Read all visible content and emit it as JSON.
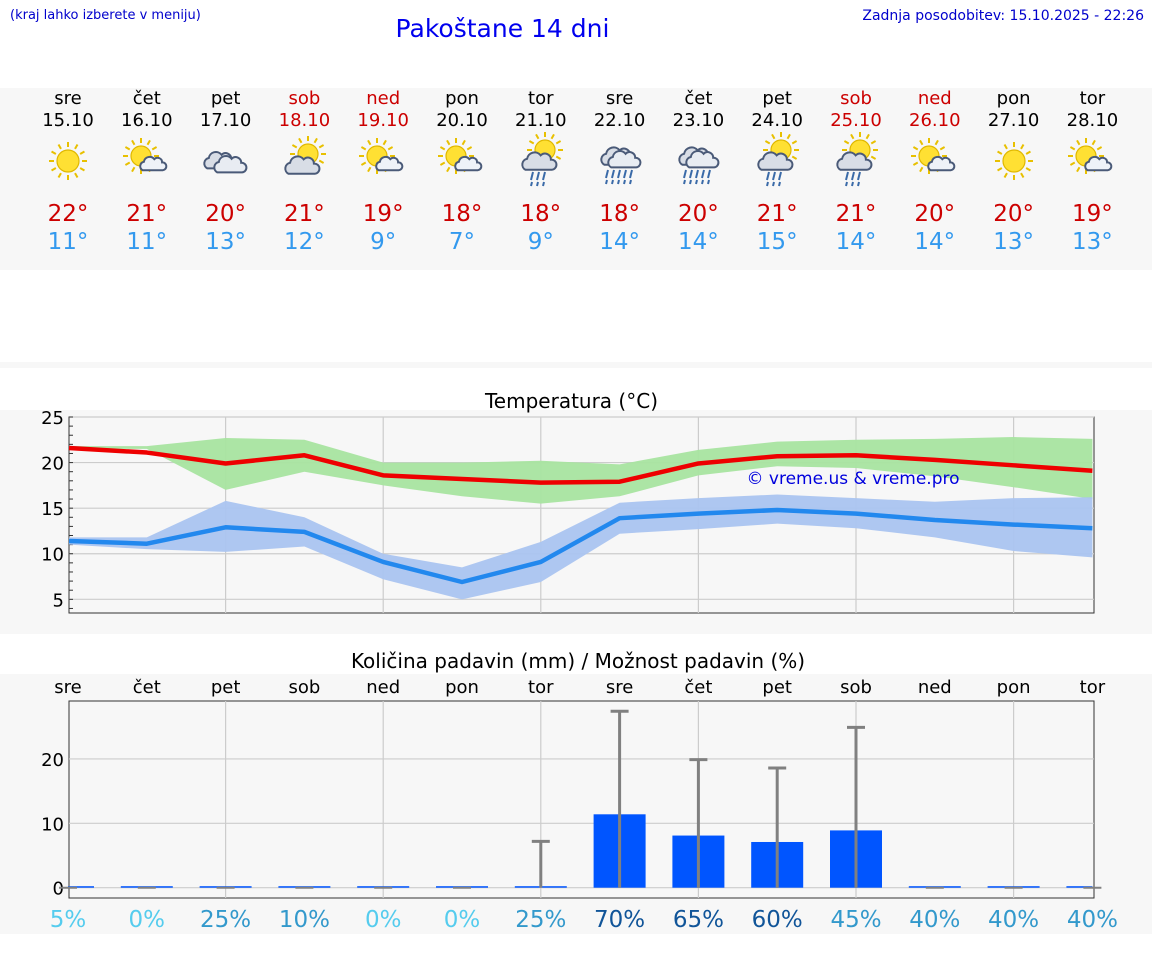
{
  "header": {
    "menu_hint": "(kraj lahko izberete v meniju)",
    "title": "Pakoštane 14 dni",
    "updated": "Zadnja posodobitev: 15.10.2025 - 22:26"
  },
  "watermark": "© vreme.us & vreme.pro",
  "colors": {
    "max": "#cc0000",
    "min": "#3399ee",
    "max_line": "#ee0000",
    "max_band": "#a8e4a0",
    "min_line": "#2288ee",
    "min_band": "#aac4f0",
    "bar": "#0055ff"
  },
  "days": [
    {
      "name": "sre",
      "date": "15.10",
      "weekend": false,
      "icon": "sun-icon",
      "tmax": "22°",
      "tmin": "11°"
    },
    {
      "name": "čet",
      "date": "16.10",
      "weekend": false,
      "icon": "sun-cloud-icon",
      "tmax": "21°",
      "tmin": "11°"
    },
    {
      "name": "pet",
      "date": "17.10",
      "weekend": false,
      "icon": "cloudy-icon",
      "tmax": "20°",
      "tmin": "13°"
    },
    {
      "name": "sob",
      "date": "18.10",
      "weekend": true,
      "icon": "cloud-sun-icon",
      "tmax": "21°",
      "tmin": "12°"
    },
    {
      "name": "ned",
      "date": "19.10",
      "weekend": true,
      "icon": "sun-cloud-icon",
      "tmax": "19°",
      "tmin": "9°"
    },
    {
      "name": "pon",
      "date": "20.10",
      "weekend": false,
      "icon": "sun-cloud-icon",
      "tmax": "18°",
      "tmin": "7°"
    },
    {
      "name": "tor",
      "date": "21.10",
      "weekend": false,
      "icon": "sun-cloud-rain-icon",
      "tmax": "18°",
      "tmin": "9°"
    },
    {
      "name": "sre",
      "date": "22.10",
      "weekend": false,
      "icon": "cloud-rain-icon",
      "tmax": "18°",
      "tmin": "14°"
    },
    {
      "name": "čet",
      "date": "23.10",
      "weekend": false,
      "icon": "cloud-rain-icon",
      "tmax": "20°",
      "tmin": "14°"
    },
    {
      "name": "pet",
      "date": "24.10",
      "weekend": false,
      "icon": "sun-cloud-rain-icon",
      "tmax": "21°",
      "tmin": "15°"
    },
    {
      "name": "sob",
      "date": "25.10",
      "weekend": true,
      "icon": "sun-cloud-rain-icon",
      "tmax": "21°",
      "tmin": "14°"
    },
    {
      "name": "ned",
      "date": "26.10",
      "weekend": true,
      "icon": "sun-cloud-icon",
      "tmax": "20°",
      "tmin": "14°"
    },
    {
      "name": "pon",
      "date": "27.10",
      "weekend": false,
      "icon": "sun-icon",
      "tmax": "20°",
      "tmin": "13°"
    },
    {
      "name": "tor",
      "date": "28.10",
      "weekend": false,
      "icon": "sun-cloud-icon",
      "tmax": "19°",
      "tmin": "13°"
    }
  ],
  "chart_data": [
    {
      "type": "line",
      "title": "Temperatura (°C)",
      "ylim": [
        3.5,
        25
      ],
      "yticks": [
        5,
        10,
        15,
        20,
        25
      ],
      "grid": true,
      "x": [
        0,
        1,
        2,
        3,
        4,
        5,
        6,
        7,
        8,
        9,
        10,
        11,
        12,
        13
      ],
      "series": [
        {
          "role": "max",
          "values": [
            21.6,
            21.1,
            19.9,
            20.8,
            18.6,
            18.2,
            17.8,
            17.9,
            19.9,
            20.7,
            20.8,
            20.3,
            19.7,
            19.1
          ],
          "band_low": [
            21.5,
            21.5,
            17.0,
            19.0,
            17.5,
            16.3,
            15.5,
            16.3,
            18.6,
            19.6,
            19.4,
            18.5,
            17.3,
            16.0
          ],
          "band_high": [
            21.8,
            21.8,
            22.7,
            22.5,
            20.0,
            20.0,
            20.2,
            19.8,
            21.4,
            22.3,
            22.5,
            22.6,
            22.8,
            22.6
          ]
        },
        {
          "role": "min",
          "values": [
            11.4,
            11.1,
            12.9,
            12.4,
            9.1,
            6.9,
            9.1,
            13.9,
            14.4,
            14.8,
            14.4,
            13.7,
            13.2,
            12.8
          ],
          "band_low": [
            11.0,
            10.5,
            10.2,
            10.8,
            7.2,
            5.0,
            6.9,
            12.2,
            12.7,
            13.3,
            12.8,
            11.8,
            10.3,
            9.6
          ],
          "band_high": [
            11.8,
            11.8,
            15.8,
            14.0,
            10.0,
            8.5,
            11.3,
            15.6,
            16.1,
            16.5,
            16.1,
            15.7,
            16.1,
            16.2
          ]
        }
      ]
    },
    {
      "type": "bar",
      "title": "Količina padavin (mm) / Možnost padavin (%)",
      "ylim": [
        -1.6,
        29
      ],
      "yticks": [
        0,
        10,
        20
      ],
      "grid": true,
      "categories": [
        "sre",
        "čet",
        "pet",
        "sob",
        "ned",
        "pon",
        "tor",
        "sre",
        "čet",
        "pet",
        "sob",
        "ned",
        "pon",
        "tor"
      ],
      "values": [
        0,
        0,
        0,
        0,
        0,
        0,
        0.2,
        11.4,
        8.1,
        7.1,
        8.9,
        0,
        0,
        0
      ],
      "error_max": [
        0,
        0,
        0,
        0,
        0,
        0,
        7.2,
        27.4,
        19.9,
        18.6,
        24.9,
        0,
        0,
        0
      ],
      "probability": [
        "5%",
        "0%",
        "25%",
        "10%",
        "0%",
        "0%",
        "25%",
        "70%",
        "65%",
        "60%",
        "45%",
        "40%",
        "40%",
        "40%"
      ],
      "probability_colors": [
        "#55ccee",
        "#55ccee",
        "#3399cc",
        "#3399cc",
        "#55ccee",
        "#55ccee",
        "#3399cc",
        "#115599",
        "#115599",
        "#115599",
        "#3399cc",
        "#3399cc",
        "#3399cc",
        "#3399cc"
      ]
    }
  ]
}
